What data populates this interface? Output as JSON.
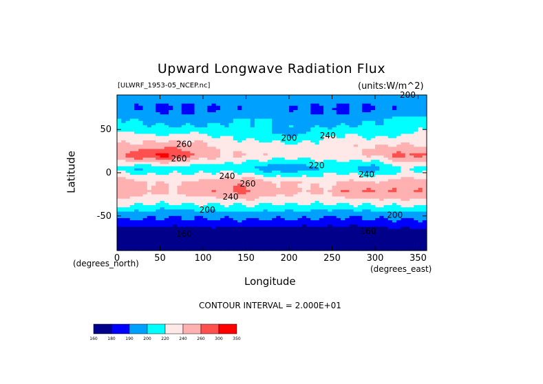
{
  "chart_data": {
    "type": "heatmap",
    "title": "Upward Longwave Radiation Flux",
    "subtitle": "[ULWRF_1953-05_NCEP.nc]",
    "units_label": "(units:W/m^2)",
    "xlabel": "Longitude",
    "ylabel": "Latitude",
    "x_unit_note": "(degrees_east)",
    "y_unit_note": "(degrees_north)",
    "xlim": [
      0,
      360
    ],
    "ylim": [
      -90,
      90
    ],
    "x_ticks": [
      0,
      50,
      100,
      150,
      200,
      250,
      300,
      350
    ],
    "y_ticks": [
      50,
      0,
      -50
    ],
    "contour_interval_text": "CONTOUR INTERVAL = 2.000E+01",
    "levels": [
      160,
      180,
      200,
      220,
      240,
      260,
      280,
      300
    ],
    "colorbar_labels": [
      "160",
      "180",
      "190",
      "200",
      "220",
      "240",
      "260",
      "300",
      "350"
    ],
    "colorbar_colors": [
      "#00008b",
      "#0000ff",
      "#00a0ff",
      "#00ffff",
      "#ffe8e8",
      "#ffb0b0",
      "#ff5050",
      "#ff0000"
    ],
    "contour_labels": [
      {
        "text": "200",
        "lon": 338,
        "lat": 87
      },
      {
        "text": "200",
        "lon": 200,
        "lat": 37
      },
      {
        "text": "240",
        "lon": 245,
        "lat": 40
      },
      {
        "text": "260",
        "lon": 78,
        "lat": 30
      },
      {
        "text": "260",
        "lon": 72,
        "lat": 13
      },
      {
        "text": "220",
        "lon": 232,
        "lat": 5
      },
      {
        "text": "240",
        "lon": 128,
        "lat": -7
      },
      {
        "text": "260",
        "lon": 152,
        "lat": -16
      },
      {
        "text": "240",
        "lon": 132,
        "lat": -31
      },
      {
        "text": "240",
        "lon": 290,
        "lat": -5
      },
      {
        "text": "200",
        "lon": 105,
        "lat": -46
      },
      {
        "text": "200",
        "lon": 323,
        "lat": -52
      },
      {
        "text": "160",
        "lon": 78,
        "lat": -74
      },
      {
        "text": "160",
        "lon": 292,
        "lat": -71
      }
    ],
    "lat_rows": [
      {
        "lat": 90,
        "v": [
          212,
          212,
          212,
          212,
          212,
          212,
          212,
          212,
          212,
          212,
          212,
          212,
          212
        ]
      },
      {
        "lat": 75,
        "v": [
          205,
          200,
          195,
          198,
          200,
          205,
          208,
          200,
          198,
          195,
          200,
          205,
          205
        ]
      },
      {
        "lat": 60,
        "v": [
          225,
          218,
          210,
          205,
          215,
          225,
          222,
          210,
          205,
          210,
          220,
          228,
          225
        ]
      },
      {
        "lat": 45,
        "v": [
          245,
          240,
          235,
          245,
          235,
          230,
          220,
          215,
          235,
          240,
          232,
          238,
          245
        ]
      },
      {
        "lat": 30,
        "v": [
          262,
          270,
          280,
          268,
          258,
          255,
          252,
          248,
          250,
          258,
          260,
          265,
          262
        ]
      },
      {
        "lat": 20,
        "v": [
          280,
          300,
          305,
          278,
          262,
          258,
          255,
          250,
          252,
          255,
          262,
          290,
          280
        ]
      },
      {
        "lat": 5,
        "v": [
          235,
          215,
          230,
          225,
          230,
          222,
          205,
          200,
          228,
          220,
          205,
          235,
          235
        ]
      },
      {
        "lat": -10,
        "v": [
          268,
          262,
          258,
          262,
          268,
          275,
          260,
          262,
          250,
          265,
          258,
          268,
          268
        ]
      },
      {
        "lat": -22,
        "v": [
          278,
          268,
          262,
          270,
          278,
          285,
          270,
          265,
          262,
          282,
          280,
          278,
          278
        ]
      },
      {
        "lat": -35,
        "v": [
          250,
          245,
          240,
          245,
          245,
          248,
          244,
          244,
          240,
          245,
          248,
          250,
          250
        ]
      },
      {
        "lat": -48,
        "v": [
          212,
          210,
          205,
          208,
          210,
          212,
          210,
          210,
          208,
          205,
          210,
          212,
          212
        ]
      },
      {
        "lat": -58,
        "v": [
          192,
          190,
          190,
          190,
          190,
          192,
          190,
          190,
          190,
          188,
          190,
          192,
          192
        ]
      },
      {
        "lat": -68,
        "v": [
          172,
          170,
          168,
          170,
          172,
          168,
          170,
          168,
          166,
          168,
          170,
          172,
          172
        ]
      },
      {
        "lat": -80,
        "v": [
          158,
          156,
          155,
          158,
          160,
          158,
          156,
          155,
          155,
          156,
          158,
          158,
          158
        ]
      },
      {
        "lat": -90,
        "v": [
          150,
          150,
          150,
          150,
          150,
          150,
          150,
          150,
          150,
          150,
          150,
          150,
          150
        ]
      }
    ]
  }
}
